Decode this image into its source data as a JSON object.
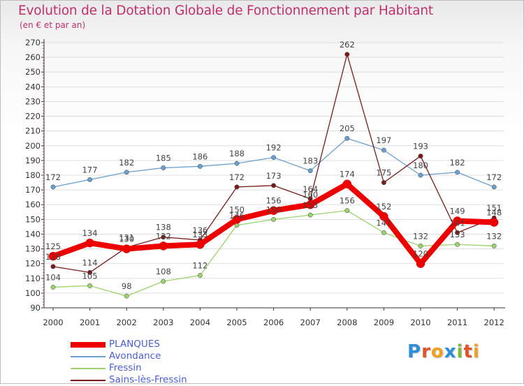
{
  "title": "Evolution de la Dotation Globale de Fonctionnement par Habitant",
  "subtitle": "(en € et par an)",
  "logo": {
    "text": "Proxiti",
    "letters": [
      {
        "ch": "P",
        "color": "#2e8fd8"
      },
      {
        "ch": "r",
        "color": "#e0532a"
      },
      {
        "ch": "o",
        "color": "#f0a020"
      },
      {
        "ch": "x",
        "color": "#2e8fd8"
      },
      {
        "ch": "i",
        "color": "#7dbb3a"
      },
      {
        "ch": "t",
        "color": "#e0532a"
      },
      {
        "ch": "i",
        "color": "#f0a020"
      }
    ]
  },
  "colors": {
    "axis": "#333333",
    "grid": "#dddddd",
    "tick_text": "#333333",
    "label_text": "#444444"
  },
  "chart_data": {
    "type": "line",
    "title": "Evolution de la Dotation Globale de Fonctionnement par Habitant",
    "subtitle": "(en € et par an)",
    "xlabel": "",
    "ylabel": "",
    "x": [
      "2000",
      "2001",
      "2002",
      "2003",
      "2004",
      "2005",
      "2006",
      "2007",
      "2008",
      "2009",
      "2010",
      "2011",
      "2012"
    ],
    "ylim": [
      90,
      270
    ],
    "yticks": [
      90,
      100,
      110,
      120,
      130,
      140,
      150,
      160,
      170,
      180,
      190,
      200,
      210,
      220,
      230,
      240,
      250,
      260,
      270
    ],
    "grid": true,
    "legend_position": "bottom-left",
    "series": [
      {
        "name": "PLANQUES",
        "color": "#ee0000",
        "style": "thick",
        "values": [
          125,
          134,
          130,
          132,
          133,
          150,
          156,
          160,
          174,
          152,
          120,
          149,
          148
        ],
        "labels": [
          "125",
          "134",
          "130",
          "132",
          "133",
          "150",
          "156",
          "160",
          "174",
          "152",
          "120",
          "149",
          "148"
        ]
      },
      {
        "name": "Avondance",
        "color": "#6a9fd0",
        "style": "thin",
        "values": [
          172,
          177,
          182,
          185,
          186,
          188,
          192,
          183,
          205,
          197,
          180,
          182,
          172
        ],
        "labels": [
          "172",
          "177",
          "182",
          "185",
          "186",
          "188",
          "192",
          "183",
          "205",
          "197",
          "180",
          "182",
          "172"
        ]
      },
      {
        "name": "Fressin",
        "color": "#99d36a",
        "style": "thin",
        "values": [
          104,
          105,
          98,
          108,
          112,
          146,
          150,
          153,
          156,
          141,
          132,
          133,
          132
        ],
        "labels": [
          "104",
          "105",
          "98",
          "108",
          "112",
          "146",
          "150",
          "153",
          "156",
          "141",
          "132",
          "133",
          "132"
        ]
      },
      {
        "name": "Sains-lès-Fressin",
        "color": "#7a1a1a",
        "style": "thin",
        "values": [
          118,
          114,
          131,
          138,
          136,
          172,
          173,
          164,
          262,
          175,
          193,
          141,
          151
        ],
        "labels": [
          "118",
          "114",
          "131",
          "138",
          "136",
          "172",
          "173",
          "164",
          "262",
          "175",
          "193",
          "141",
          "151"
        ]
      }
    ]
  }
}
